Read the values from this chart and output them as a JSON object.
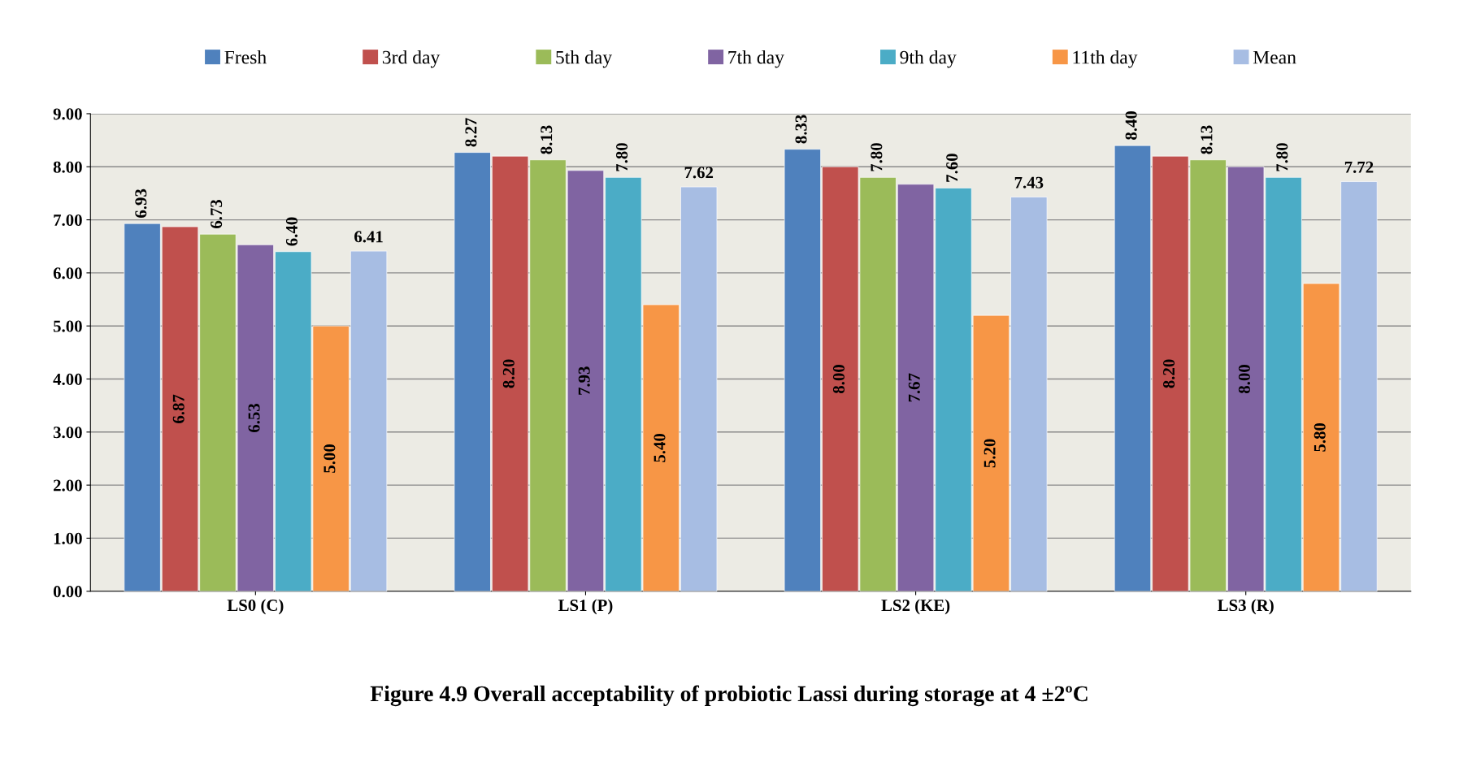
{
  "chart_data": {
    "type": "bar",
    "title": "Figure 4.9 Overall acceptability of probiotic Lassi during storage at 4 ±2ºC",
    "categories": [
      "LS0 (C)",
      "LS1 (P)",
      "LS2 (KE)",
      "LS3 (R)"
    ],
    "series": [
      {
        "name": "Fresh",
        "color": "#4f81bd",
        "values": [
          6.93,
          8.27,
          8.33,
          8.4
        ],
        "value_labels": [
          "6.93",
          "8.27",
          "8.33",
          "8.40"
        ]
      },
      {
        "name": "3rd day",
        "color": "#c0504d",
        "values": [
          6.87,
          8.2,
          8.0,
          8.2
        ],
        "value_labels": [
          "6.87",
          "8.20",
          "8.00",
          "8.20"
        ]
      },
      {
        "name": "5th day",
        "color": "#9bbb59",
        "values": [
          6.73,
          8.13,
          7.8,
          8.13
        ],
        "value_labels": [
          "6.73",
          "8.13",
          "7.80",
          "8.13"
        ]
      },
      {
        "name": "7th day",
        "color": "#8064a2",
        "values": [
          6.53,
          7.93,
          7.67,
          8.0
        ],
        "value_labels": [
          "6.53",
          "7.93",
          "7.67",
          "8.00"
        ]
      },
      {
        "name": "9th day",
        "color": "#4bacc6",
        "values": [
          6.4,
          7.8,
          7.6,
          7.8
        ],
        "value_labels": [
          "6.40",
          "7.80",
          "7.60",
          "7.80"
        ]
      },
      {
        "name": "11th day",
        "color": "#f79646",
        "values": [
          5.0,
          5.4,
          5.2,
          5.8
        ],
        "value_labels": [
          "5.00",
          "5.40",
          "5.20",
          "5.80"
        ]
      },
      {
        "name": "Mean",
        "color": "#a7bde3",
        "values": [
          6.41,
          7.62,
          7.43,
          7.72
        ],
        "value_labels": [
          "6.41",
          "7.62",
          "7.43",
          "7.72"
        ]
      }
    ],
    "ylim": [
      0,
      9
    ],
    "yticks": [
      {
        "value": 0,
        "label": "0.00"
      },
      {
        "value": 1,
        "label": "1.00"
      },
      {
        "value": 2,
        "label": "2.00"
      },
      {
        "value": 3,
        "label": "3.00"
      },
      {
        "value": 4,
        "label": "4.00"
      },
      {
        "value": 5,
        "label": "5.00"
      },
      {
        "value": 6,
        "label": "6.00"
      },
      {
        "value": 7,
        "label": "7.00"
      },
      {
        "value": 8,
        "label": "8.00"
      },
      {
        "value": 9,
        "label": "9.00"
      }
    ],
    "grid": "y",
    "legend": "top"
  }
}
